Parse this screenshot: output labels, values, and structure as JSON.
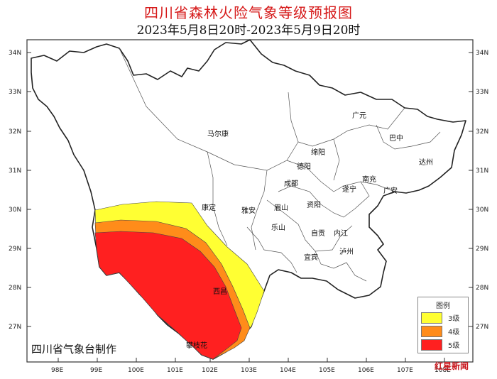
{
  "title": "四川省森林火险气象等级预报图",
  "subtitle": "2023年5月8日20时-2023年5月9日20时",
  "lat_labels": [
    "34N",
    "33N",
    "32N",
    "31N",
    "30N",
    "29N",
    "28N",
    "27N"
  ],
  "lon_labels": [
    "98E",
    "99E",
    "100E",
    "101E",
    "102E",
    "103E",
    "104E",
    "105E",
    "106E",
    "107E",
    "108E"
  ],
  "cities": [
    {
      "name": "广元"
    },
    {
      "name": "巴中"
    },
    {
      "name": "达州"
    },
    {
      "name": "马尔康"
    },
    {
      "name": "绵阳"
    },
    {
      "name": "德阳"
    },
    {
      "name": "南充"
    },
    {
      "name": "成都"
    },
    {
      "name": "遂宁"
    },
    {
      "name": "广安"
    },
    {
      "name": "康定"
    },
    {
      "name": "雅安"
    },
    {
      "name": "眉山"
    },
    {
      "name": "资阳"
    },
    {
      "name": "乐山"
    },
    {
      "name": "自贡"
    },
    {
      "name": "内江"
    },
    {
      "name": "泸州"
    },
    {
      "name": "宜宾"
    },
    {
      "name": "西昌"
    },
    {
      "name": "攀枝花"
    }
  ],
  "legend": {
    "title": "图例",
    "items": [
      {
        "label": "3级",
        "color": "#ffff33"
      },
      {
        "label": "4级",
        "color": "#ff8c1a"
      },
      {
        "label": "5级",
        "color": "#ff2020"
      }
    ]
  },
  "producer": "四川省气象台制作",
  "watermark": "红星新闻",
  "colors": {
    "title": "#d61a1a",
    "level3": "#ffff33",
    "level4": "#ff8c1a",
    "level5": "#ff2020"
  }
}
